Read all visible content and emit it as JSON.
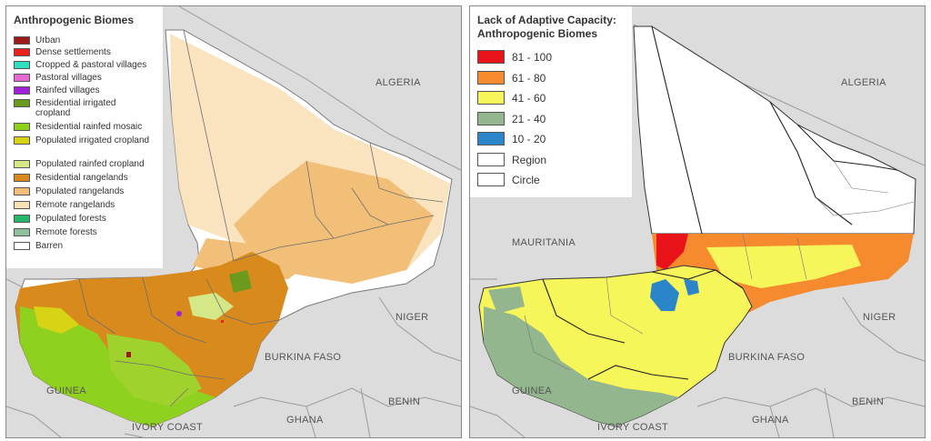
{
  "colors": {
    "land": "#dcdcdc",
    "border": "#7a7a7a",
    "region_line": "#444444"
  },
  "left_map": {
    "legend_title": "Anthropogenic Biomes",
    "legend_items": [
      {
        "label": "Urban",
        "color": "#9b1b1b"
      },
      {
        "label": "Dense settlements",
        "color": "#ee2121"
      },
      {
        "label": "Cropped & pastoral villages",
        "color": "#2fe0c0"
      },
      {
        "label": "Pastoral villages",
        "color": "#e56ad2"
      },
      {
        "label": "Rainfed villages",
        "color": "#a020d8"
      },
      {
        "label": "Residential irrigated cropland",
        "color": "#6b9a1e"
      },
      {
        "label": "Residential rainfed mosaic",
        "color": "#8fd11f"
      },
      {
        "label": "Populated irrigated cropland",
        "color": "#d9d316"
      },
      {
        "label": "Populated rainfed cropland",
        "color": "#d4e888"
      },
      {
        "label": "Residential rangelands",
        "color": "#d88a1c"
      },
      {
        "label": "Populated rangelands",
        "color": "#f2bf78"
      },
      {
        "label": "Remote rangelands",
        "color": "#f9dfb4"
      },
      {
        "label": "Populated forests",
        "color": "#27b56a"
      },
      {
        "label": "Remote forests",
        "color": "#8fbf9c"
      },
      {
        "label": "Barren",
        "color": "#ffffff"
      }
    ],
    "countries": {
      "algeria": "ALGERIA",
      "niger": "NIGER",
      "burkina_faso": "BURKINA FASO",
      "guinea": "GUINEA",
      "benin": "BENIN",
      "ghana": "GHANA",
      "ivory_coast": "IVORY COAST"
    }
  },
  "right_map": {
    "legend_title": "Lack of Adaptive Capacity: Anthropogenic Biomes",
    "legend_title_line1": "Lack of Adaptive Capacity:",
    "legend_title_line2": "Anthropogenic Biomes",
    "legend_items": [
      {
        "label": "81 - 100",
        "color": "#e8141a"
      },
      {
        "label": "61 - 80",
        "color": "#f68a2e"
      },
      {
        "label": "41 - 60",
        "color": "#f6f55a"
      },
      {
        "label": "21 - 40",
        "color": "#93b68e"
      },
      {
        "label": "10 - 20",
        "color": "#2a86c8"
      },
      {
        "label": "Region",
        "color": "#ffffff"
      },
      {
        "label": "Circle",
        "color": "#ffffff"
      }
    ],
    "countries": {
      "algeria": "ALGERIA",
      "mauritania": "MAURITANIA",
      "niger": "NIGER",
      "burkina_faso": "BURKINA FASO",
      "guinea": "GUINEA",
      "benin": "BENIN",
      "ghana": "GHANA",
      "ivory_coast": "IVORY COAST"
    }
  }
}
